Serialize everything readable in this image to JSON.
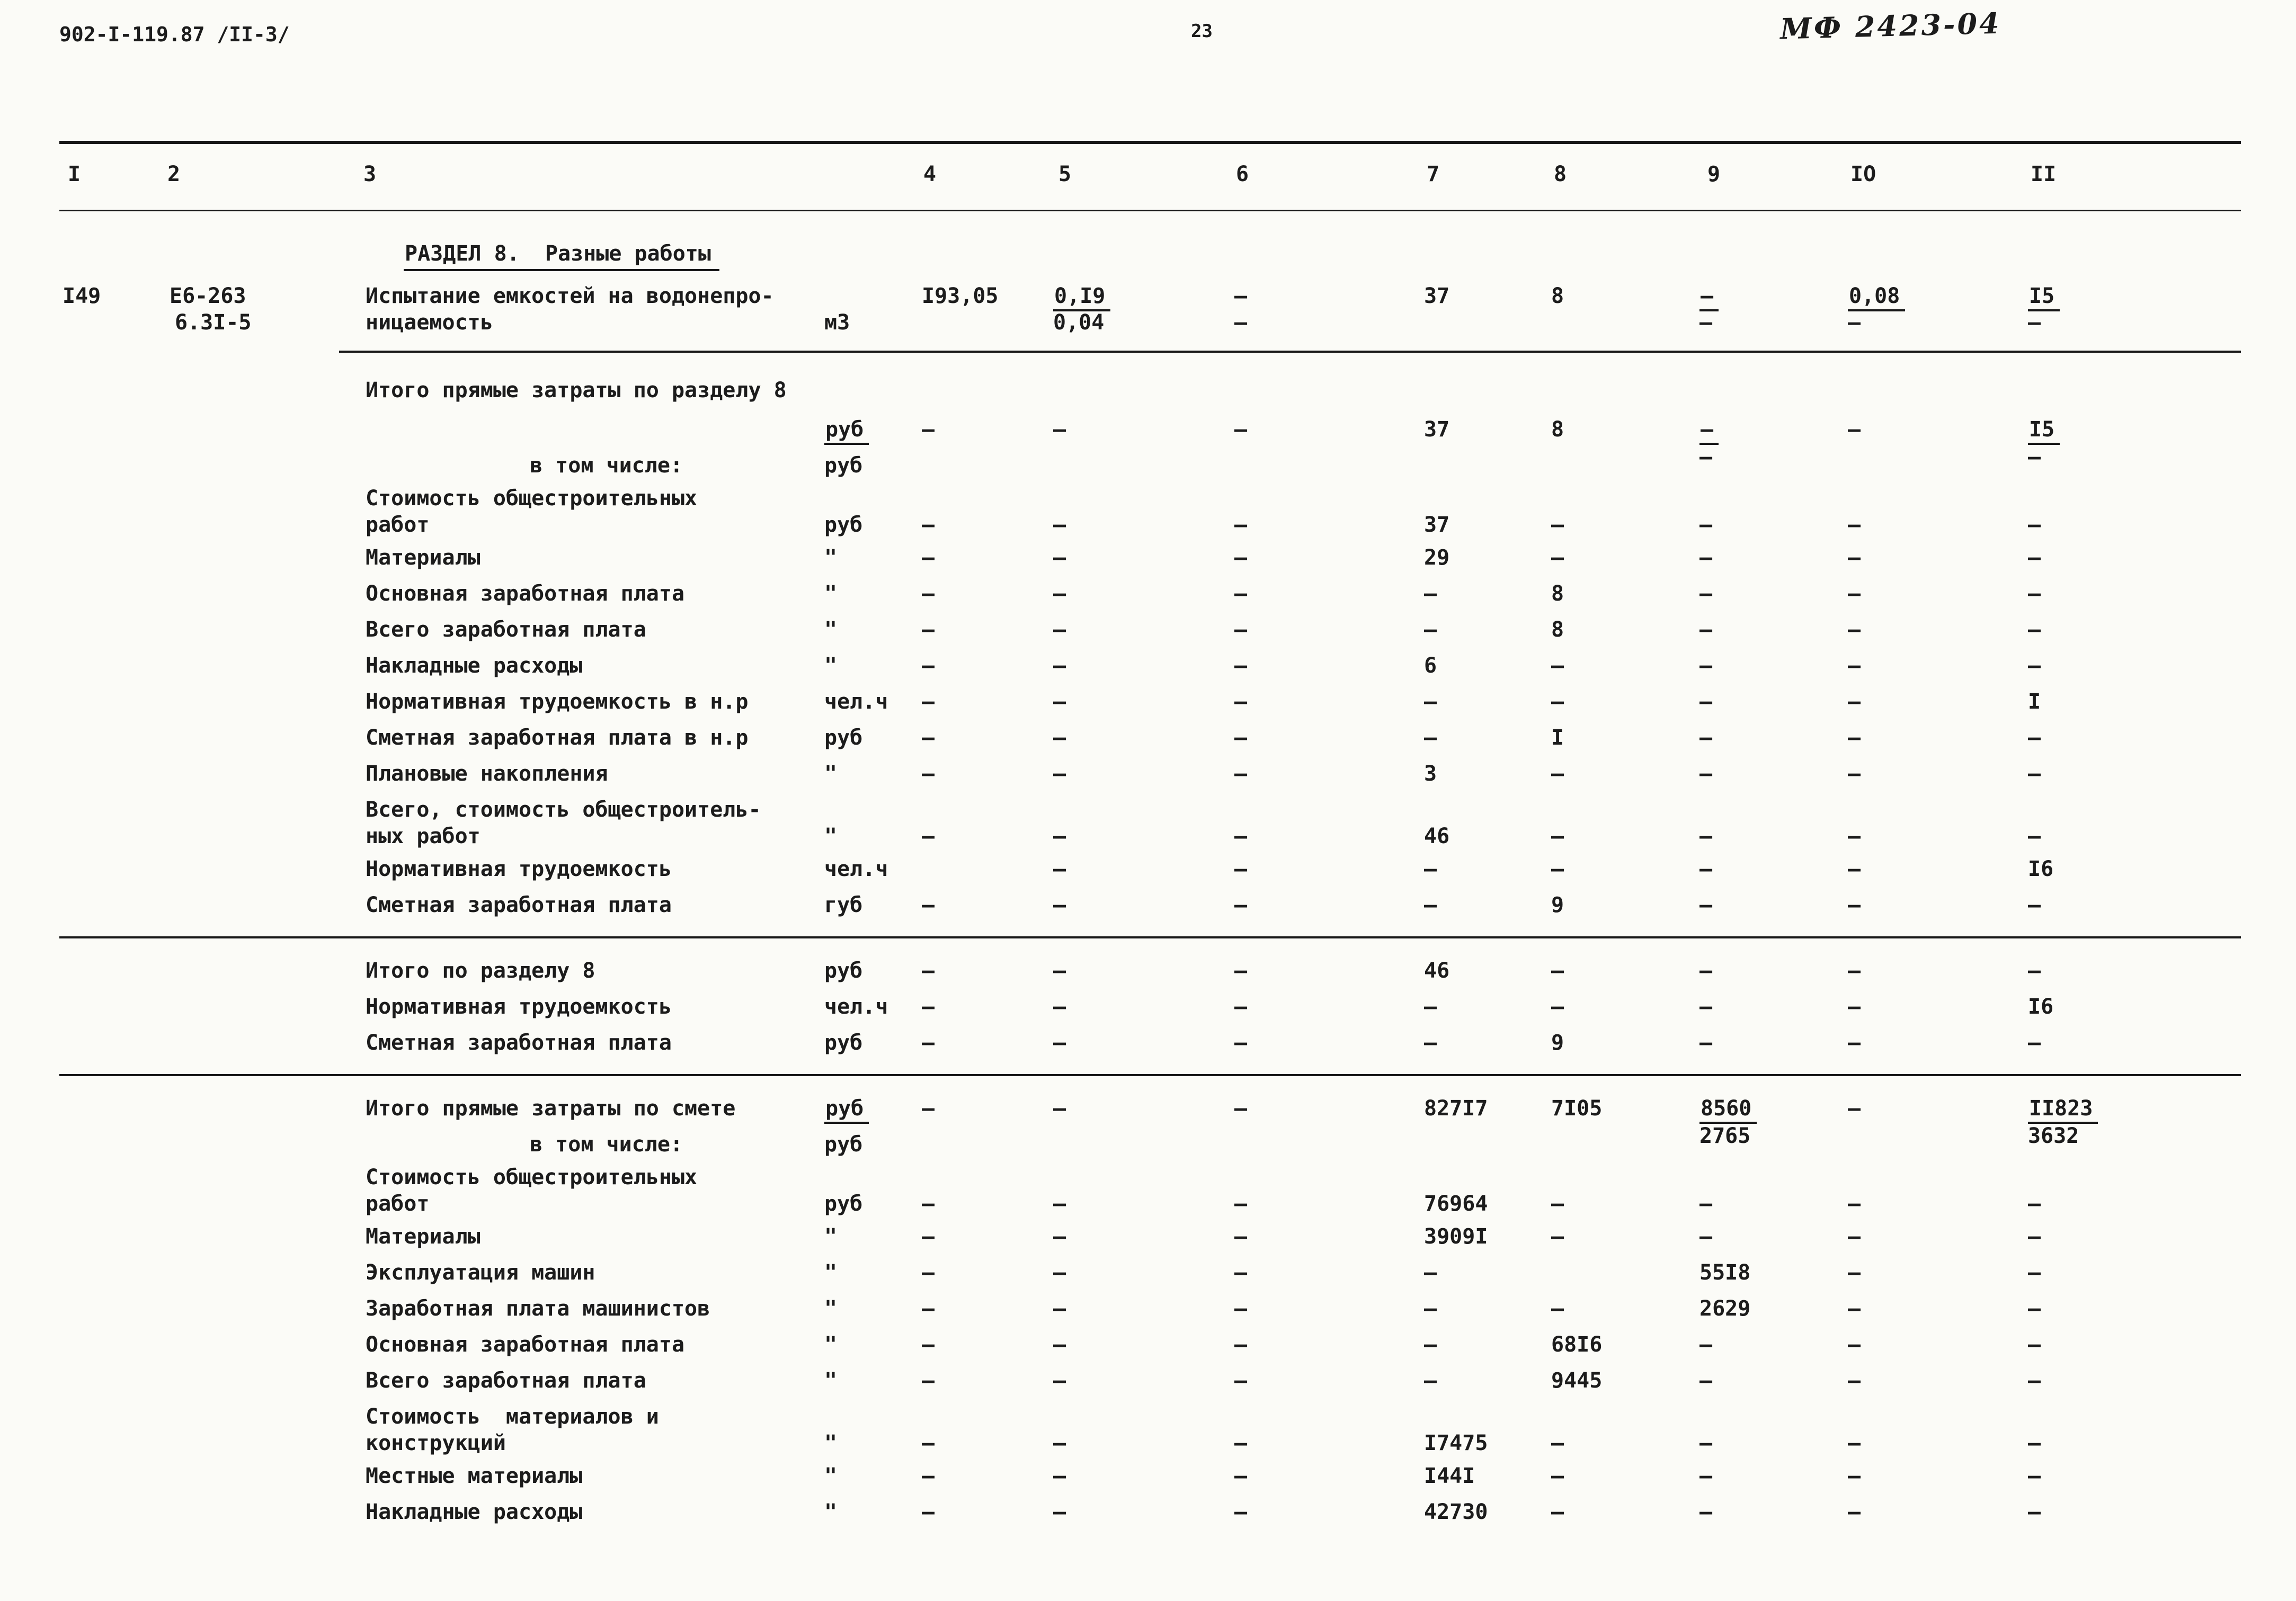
{
  "page": {
    "doc_number": "902-I-119.87 /II-3/",
    "page_number": "23",
    "stamp": "МФ 2423-04"
  },
  "table": {
    "columns": [
      "I",
      "2",
      "3",
      "4",
      "5",
      "6",
      "7",
      "8",
      "9",
      "IO",
      "II"
    ],
    "section_title": "РАЗДЕЛ 8.  Разные работы",
    "rows": [
      {
        "num": "I49",
        "code": "Е6-263",
        "code2": "6.3I-5",
        "label": "Испытание емкостей на водонепро-",
        "label2": "ницаемость",
        "unit": "м3",
        "unit_line": 2,
        "two_line": true,
        "c": {
          "4": "I93,05",
          "5": "0,I9",
          "6": "—",
          "7": "37",
          "8": "8",
          "9": "—",
          "10": "0,08",
          "11": "I5"
        },
        "c2": {
          "5": "0,04",
          "6": "—",
          "9": "—",
          "10": "—",
          "11": "—"
        },
        "ul": [
          "5",
          "9",
          "10",
          "11"
        ],
        "rule_after": true
      },
      {
        "label": "Итого прямые затраты по разделу 8"
      },
      {
        "unit": "руб",
        "unit_ul": true,
        "c": {
          "4": "—",
          "5": "—",
          "6": "—",
          "7": "37",
          "8": "8",
          "9": "—",
          "10": "—",
          "11": "I5"
        },
        "c2": {
          "9": "—",
          "11": "—"
        },
        "ul": [
          "9",
          "11"
        ]
      },
      {
        "label": "в том числе:",
        "indent": true,
        "unit": "руб"
      },
      {
        "label": "Стоимость общестроительных",
        "label2": "работ",
        "unit": "руб",
        "unit_line": 2,
        "two_line": true,
        "c": {
          "4": "—",
          "5": "—",
          "6": "—",
          "7": "37",
          "8": "—",
          "9": "—",
          "10": "—",
          "11": "—"
        }
      },
      {
        "label": "Материалы",
        "unit": "\"",
        "c": {
          "4": "—",
          "5": "—",
          "6": "—",
          "7": "29",
          "8": "—",
          "9": "—",
          "10": "—",
          "11": "—"
        }
      },
      {
        "label": "Основная заработная плата",
        "unit": "\"",
        "c": {
          "4": "—",
          "5": "—",
          "6": "—",
          "7": "—",
          "8": "8",
          "9": "—",
          "10": "—",
          "11": "—"
        }
      },
      {
        "label": "Всего заработная плата",
        "unit": "\"",
        "c": {
          "4": "—",
          "5": "—",
          "6": "—",
          "7": "—",
          "8": "8",
          "9": "—",
          "10": "—",
          "11": "—"
        }
      },
      {
        "label": "Накладные расходы",
        "unit": "\"",
        "c": {
          "4": "—",
          "5": "—",
          "6": "—",
          "7": "6",
          "8": "—",
          "9": "—",
          "10": "—",
          "11": "—"
        }
      },
      {
        "label": "Нормативная трудоемкость в н.р",
        "unit": "чел.ч",
        "c": {
          "4": "—",
          "5": "—",
          "6": "—",
          "7": "—",
          "8": "—",
          "9": "—",
          "10": "—",
          "11": "I"
        }
      },
      {
        "label": "Сметная заработная плата в н.р",
        "unit": "руб",
        "c": {
          "4": "—",
          "5": "—",
          "6": "—",
          "7": "—",
          "8": "I",
          "9": "—",
          "10": "—",
          "11": "—"
        }
      },
      {
        "label": "Плановые накопления",
        "unit": "\"",
        "c": {
          "4": "—",
          "5": "—",
          "6": "—",
          "7": "3",
          "8": "—",
          "9": "—",
          "10": "—",
          "11": "—"
        }
      },
      {
        "label": "Всего, стоимость общестроитель-",
        "label2": "ных работ",
        "unit": "\"",
        "unit_line": 2,
        "two_line": true,
        "c": {
          "4": "—",
          "5": "—",
          "6": "—",
          "7": "46",
          "8": "—",
          "9": "—",
          "10": "—",
          "11": "—"
        }
      },
      {
        "label": "Нормативная трудоемкость",
        "unit": "чел.ч",
        "c": {
          "5": "—",
          "6": "—",
          "7": "—",
          "8": "—",
          "9": "—",
          "10": "—",
          "11": "I6"
        }
      },
      {
        "label": "Сметная заработная плата",
        "unit": "губ",
        "c": {
          "4": "—",
          "5": "—",
          "6": "—",
          "7": "—",
          "8": "9",
          "9": "—",
          "10": "—",
          "11": "—"
        },
        "rule_after": true
      },
      {
        "label": "Итого по разделу 8",
        "unit": "руб",
        "c": {
          "4": "—",
          "5": "—",
          "6": "—",
          "7": "46",
          "8": "—",
          "9": "—",
          "10": "—",
          "11": "—"
        }
      },
      {
        "label": "Нормативная трудоемкость",
        "unit": "чел.ч",
        "c": {
          "4": "—",
          "5": "—",
          "6": "—",
          "7": "—",
          "8": "—",
          "9": "—",
          "10": "—",
          "11": "I6"
        }
      },
      {
        "label": "Сметная заработная плата",
        "unit": "руб",
        "c": {
          "4": "—",
          "5": "—",
          "6": "—",
          "7": "—",
          "8": "9",
          "9": "—",
          "10": "—",
          "11": "—"
        },
        "rule_after": true
      },
      {
        "label": "Итого прямые затраты по смете",
        "unit": "руб",
        "unit_ul": true,
        "c": {
          "4": "—",
          "5": "—",
          "6": "—",
          "7": "827I7",
          "8": "7I05",
          "9": "8560",
          "10": "—",
          "11": "II823"
        },
        "c2": {
          "9": "2765",
          "11": "3632"
        },
        "ul": [
          "9",
          "11"
        ]
      },
      {
        "label": "в том числе:",
        "indent": true,
        "unit": "руб"
      },
      {
        "label": "Стоимость общестроительных",
        "label2": "работ",
        "unit": "руб",
        "unit_line": 2,
        "two_line": true,
        "c": {
          "4": "—",
          "5": "—",
          "6": "—",
          "7": "76964",
          "8": "—",
          "9": "—",
          "10": "—",
          "11": "—"
        }
      },
      {
        "label": "Материалы",
        "unit": "\"",
        "c": {
          "4": "—",
          "5": "—",
          "6": "—",
          "7": "3909I",
          "8": "—",
          "9": "—",
          "10": "—",
          "11": "—"
        }
      },
      {
        "label": "Эксплуатация машин",
        "unit": "\"",
        "c": {
          "4": "—",
          "5": "—",
          "6": "—",
          "7": "—",
          "9": "55I8",
          "10": "—",
          "11": "—"
        }
      },
      {
        "label": "Заработная плата машинистов",
        "unit": "\"",
        "c": {
          "4": "—",
          "5": "—",
          "6": "—",
          "7": "—",
          "8": "—",
          "9": "2629",
          "10": "—",
          "11": "—"
        }
      },
      {
        "label": "Основная заработная плата",
        "unit": "\"",
        "c": {
          "4": "—",
          "5": "—",
          "6": "—",
          "7": "—",
          "8": "68I6",
          "9": "—",
          "10": "—",
          "11": "—"
        }
      },
      {
        "label": "Всего заработная плата",
        "unit": "\"",
        "c": {
          "4": "—",
          "5": "—",
          "6": "—",
          "7": "—",
          "8": "9445",
          "9": "—",
          "10": "—",
          "11": "—"
        }
      },
      {
        "label": "Стоимость  материалов и",
        "label2": "конструкций",
        "unit": "\"",
        "unit_line": 2,
        "two_line": true,
        "c": {
          "4": "—",
          "5": "—",
          "6": "—",
          "7": "I7475",
          "8": "—",
          "9": "—",
          "10": "—",
          "11": "—"
        }
      },
      {
        "label": "Местные материалы",
        "unit": "\"",
        "c": {
          "4": "—",
          "5": "—",
          "6": "—",
          "7": "I44I",
          "8": "—",
          "9": "—",
          "10": "—",
          "11": "—"
        }
      },
      {
        "label": "Накладные расходы",
        "unit": "\"",
        "c": {
          "4": "—",
          "5": "—",
          "6": "—",
          "7": "42730",
          "8": "—",
          "9": "—",
          "10": "—",
          "11": "—"
        }
      }
    ]
  }
}
